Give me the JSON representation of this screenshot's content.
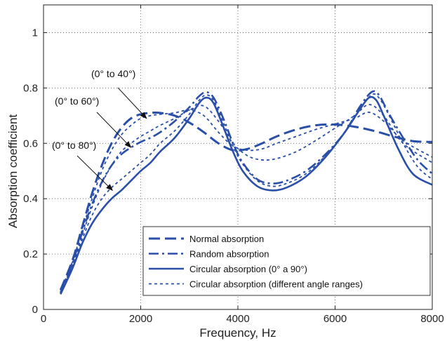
{
  "chart_data": {
    "type": "line",
    "xlabel": "Frequency, Hz",
    "ylabel": "Absorption coefficient",
    "xlim": [
      0,
      8000
    ],
    "ylim": [
      0,
      1.1
    ],
    "xticks": [
      0,
      2000,
      4000,
      6000,
      8000
    ],
    "yticks": [
      0,
      0.2,
      0.4,
      0.6,
      0.8,
      1
    ],
    "grid": true,
    "legend_position": "bottom-right",
    "color": "#2a4fa8",
    "legend": [
      {
        "label": "Normal absorption",
        "style": "longdash"
      },
      {
        "label": "Random absorption",
        "style": "dashdot"
      },
      {
        "label": "Circular absorption (0° a 90°)",
        "style": "solid"
      },
      {
        "label": "Circular absorption (different angle ranges)",
        "style": "dotted"
      }
    ],
    "annotations": [
      {
        "text": "(0° to 40°)",
        "x": 2120,
        "y": 0.69
      },
      {
        "text": "(0° to 60°)",
        "x": 1800,
        "y": 0.585
      },
      {
        "text": "(0° to 80°)",
        "x": 1420,
        "y": 0.43
      }
    ],
    "series": [
      {
        "name": "Normal absorption",
        "style": "longdash",
        "x": [
          350,
          600,
          800,
          1000,
          1200,
          1400,
          1600,
          1800,
          2000,
          2200,
          2400,
          2700,
          3000,
          3300,
          3600,
          3900,
          4200,
          4500,
          4800,
          5200,
          5600,
          6000,
          6400,
          6800,
          7200,
          7600,
          8000
        ],
        "y": [
          0.07,
          0.18,
          0.3,
          0.42,
          0.52,
          0.6,
          0.655,
          0.69,
          0.705,
          0.71,
          0.71,
          0.7,
          0.675,
          0.64,
          0.6,
          0.575,
          0.58,
          0.6,
          0.625,
          0.65,
          0.665,
          0.668,
          0.66,
          0.645,
          0.625,
          0.608,
          0.605
        ]
      },
      {
        "name": "Random absorption",
        "style": "dashdot",
        "x": [
          350,
          600,
          800,
          1000,
          1200,
          1400,
          1600,
          1800,
          2000,
          2200,
          2400,
          2700,
          3000,
          3200,
          3350,
          3500,
          3700,
          3900,
          4100,
          4400,
          4700,
          5000,
          5400,
          5800,
          6200,
          6500,
          6750,
          6900,
          7100,
          7400,
          7700,
          8000
        ],
        "y": [
          0.06,
          0.17,
          0.28,
          0.38,
          0.46,
          0.52,
          0.56,
          0.585,
          0.605,
          0.62,
          0.64,
          0.68,
          0.73,
          0.77,
          0.785,
          0.765,
          0.69,
          0.6,
          0.53,
          0.47,
          0.455,
          0.465,
          0.5,
          0.56,
          0.64,
          0.73,
          0.785,
          0.775,
          0.71,
          0.62,
          0.54,
          0.49
        ]
      },
      {
        "name": "Circular absorption (0° a 90°)",
        "style": "solid",
        "x": [
          350,
          600,
          800,
          1000,
          1200,
          1400,
          1600,
          1800,
          2000,
          2200,
          2400,
          2700,
          3000,
          3200,
          3350,
          3500,
          3700,
          3900,
          4100,
          4400,
          4700,
          5000,
          5400,
          5800,
          6200,
          6500,
          6700,
          6850,
          7000,
          7300,
          7600,
          8000
        ],
        "y": [
          0.055,
          0.15,
          0.24,
          0.31,
          0.36,
          0.4,
          0.43,
          0.465,
          0.5,
          0.53,
          0.57,
          0.62,
          0.69,
          0.745,
          0.765,
          0.745,
          0.66,
          0.57,
          0.5,
          0.445,
          0.43,
          0.44,
          0.48,
          0.55,
          0.64,
          0.72,
          0.765,
          0.755,
          0.7,
          0.58,
          0.49,
          0.45
        ]
      },
      {
        "name": "Circular absorption (0° to 40°)",
        "style": "dotted",
        "x": [
          350,
          600,
          800,
          1000,
          1200,
          1400,
          1600,
          1800,
          2000,
          2200,
          2400,
          2700,
          3000,
          3300,
          3600,
          3900,
          4200,
          4500,
          4800,
          5200,
          5600,
          6000,
          6400,
          6700,
          7000,
          7400,
          8000
        ],
        "y": [
          0.065,
          0.175,
          0.29,
          0.4,
          0.5,
          0.575,
          0.63,
          0.665,
          0.69,
          0.7,
          0.705,
          0.71,
          0.72,
          0.7,
          0.64,
          0.59,
          0.575,
          0.58,
          0.6,
          0.625,
          0.65,
          0.67,
          0.69,
          0.712,
          0.68,
          0.61,
          0.55
        ]
      },
      {
        "name": "Circular absorption (0° to 60°)",
        "style": "dotted",
        "x": [
          350,
          600,
          800,
          1000,
          1200,
          1400,
          1600,
          1800,
          2000,
          2200,
          2400,
          2700,
          3000,
          3300,
          3600,
          3900,
          4200,
          4500,
          4800,
          5200,
          5600,
          6000,
          6400,
          6700,
          7000,
          7400,
          8000
        ],
        "y": [
          0.06,
          0.165,
          0.27,
          0.37,
          0.455,
          0.52,
          0.57,
          0.6,
          0.625,
          0.645,
          0.665,
          0.69,
          0.72,
          0.735,
          0.68,
          0.6,
          0.555,
          0.54,
          0.545,
          0.57,
          0.61,
          0.655,
          0.7,
          0.74,
          0.7,
          0.6,
          0.53
        ]
      },
      {
        "name": "Circular absorption (0° to 80°)",
        "style": "dotted",
        "x": [
          350,
          600,
          800,
          1000,
          1200,
          1400,
          1600,
          1800,
          2000,
          2200,
          2400,
          2700,
          3000,
          3200,
          3350,
          3500,
          3700,
          3900,
          4100,
          4400,
          4700,
          5000,
          5400,
          5800,
          6200,
          6500,
          6750,
          6900,
          7100,
          7400,
          7700,
          8000
        ],
        "y": [
          0.058,
          0.16,
          0.255,
          0.34,
          0.4,
          0.44,
          0.47,
          0.5,
          0.53,
          0.56,
          0.6,
          0.645,
          0.705,
          0.755,
          0.775,
          0.755,
          0.675,
          0.59,
          0.525,
          0.465,
          0.445,
          0.455,
          0.49,
          0.555,
          0.64,
          0.72,
          0.775,
          0.765,
          0.705,
          0.6,
          0.515,
          0.47
        ]
      }
    ]
  }
}
